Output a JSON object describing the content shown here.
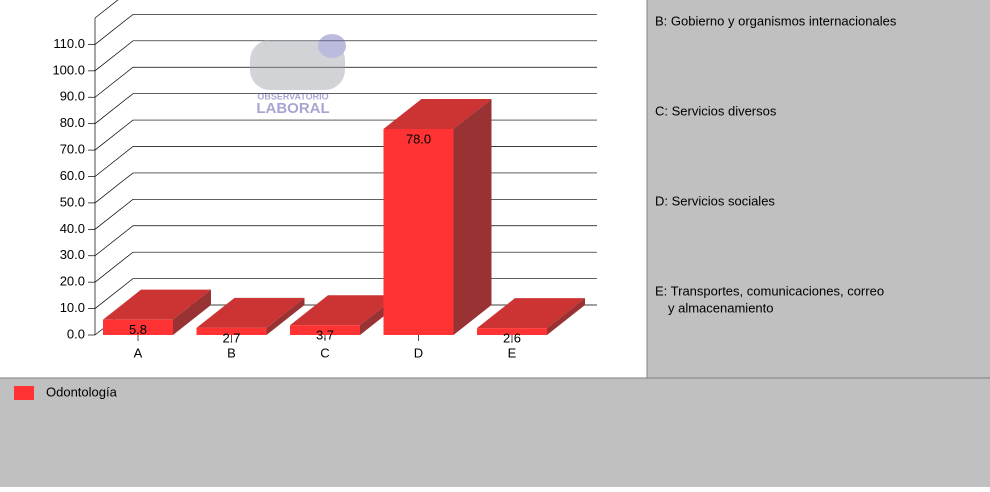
{
  "chart_data": {
    "type": "bar3d",
    "watermark": [
      "OBSERVATORIO",
      "LABORAL"
    ],
    "categories": [
      "A",
      "B",
      "C",
      "D",
      "E"
    ],
    "series": [
      {
        "name": "Odontología",
        "color": "#ff3333",
        "values": [
          5.8,
          2.7,
          3.7,
          78.0,
          2.6
        ],
        "value_labels": [
          "5.8",
          "2.7",
          "3.7",
          "78.0",
          "2.6"
        ]
      }
    ],
    "ylim": [
      0,
      120
    ],
    "yticks": [
      {
        "value": 0,
        "label": "0.0"
      },
      {
        "value": 10,
        "label": "10.0"
      },
      {
        "value": 20,
        "label": "20.0"
      },
      {
        "value": 30,
        "label": "30.0"
      },
      {
        "value": 40,
        "label": "40.0"
      },
      {
        "value": 50,
        "label": "50.0"
      },
      {
        "value": 60,
        "label": "60.0"
      },
      {
        "value": 70,
        "label": "70.0"
      },
      {
        "value": 80,
        "label": "80.0"
      },
      {
        "value": 90,
        "label": "90.0"
      },
      {
        "value": 100,
        "label": "100.0"
      },
      {
        "value": 110,
        "label": "110.0"
      }
    ],
    "grid": true,
    "category_descriptions": [
      [
        "B: Gobierno y organismos internacionales"
      ],
      [
        "C: Servicios diversos"
      ],
      [
        "D: Servicios sociales"
      ],
      [
        "E: Transportes, comunicaciones, correo",
        "y almacenamiento"
      ]
    ]
  }
}
